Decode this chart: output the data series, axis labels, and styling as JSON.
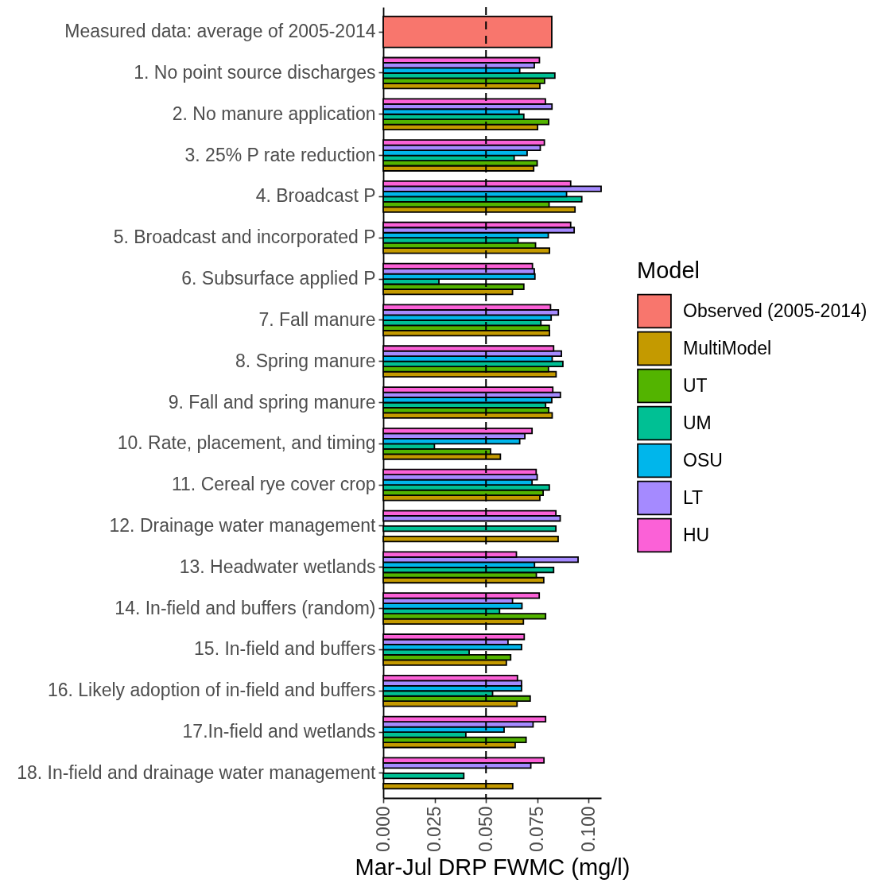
{
  "chart_data": {
    "type": "bar",
    "orientation": "horizontal",
    "categories": [
      "Measured data: average of 2005-2014",
      "1. No point source discharges",
      "2. No manure application",
      "3. 25% P rate reduction",
      "4. Broadcast P",
      "5. Broadcast and incorporated P",
      "6. Subsurface applied P",
      "7. Fall manure",
      "8. Spring manure",
      "9. Fall and spring manure",
      "10. Rate, placement, and timing",
      "11. Cereal rye cover crop",
      "12. Drainage water management",
      "13. Headwater wetlands",
      "14. In-field and buffers (random)",
      "15. In-field and buffers",
      "16. Likely adoption of in-field and buffers",
      "17.In-field and wetlands",
      "18. In-field and drainage water management"
    ],
    "series": [
      {
        "name": "Observed (2005-2014)",
        "color": "#f8766d",
        "values": [
          0.082,
          null,
          null,
          null,
          null,
          null,
          null,
          null,
          null,
          null,
          null,
          null,
          null,
          null,
          null,
          null,
          null,
          null,
          null
        ]
      },
      {
        "name": "MultiModel",
        "color": "#c49a00",
        "values": [
          null,
          0.0762,
          0.0751,
          0.0732,
          0.0933,
          0.0809,
          0.0629,
          0.0809,
          0.0841,
          0.0822,
          0.057,
          0.0762,
          0.0851,
          0.0781,
          0.0682,
          0.0599,
          0.0651,
          0.0642,
          0.063
        ]
      },
      {
        "name": "UT",
        "color": "#53b400",
        "values": [
          null,
          0.0785,
          0.0805,
          0.0749,
          0.0807,
          0.0741,
          0.0684,
          0.0808,
          0.0804,
          0.0805,
          0.0522,
          0.0778,
          null,
          0.0745,
          0.079,
          0.062,
          0.0715,
          0.0695,
          null
        ]
      },
      {
        "name": "UM",
        "color": "#00c094",
        "values": [
          null,
          0.0835,
          0.0684,
          0.0637,
          0.0966,
          0.0656,
          0.0271,
          0.0767,
          0.0874,
          0.079,
          0.0249,
          0.0808,
          0.084,
          0.0829,
          0.0566,
          0.0418,
          0.0532,
          0.0402,
          0.0392
        ]
      },
      {
        "name": "OSU",
        "color": "#00b6eb",
        "values": [
          null,
          0.0664,
          0.0661,
          0.07,
          0.0892,
          0.0803,
          0.0738,
          0.0817,
          0.0822,
          0.082,
          0.0664,
          0.0724,
          null,
          0.0736,
          0.0675,
          0.0673,
          0.0673,
          0.0588,
          null
        ]
      },
      {
        "name": "LT",
        "color": "#a58aff",
        "values": [
          null,
          0.0735,
          0.0821,
          0.0764,
          0.106,
          0.0929,
          0.0735,
          0.0852,
          0.0867,
          0.0862,
          0.0689,
          0.0749,
          0.0861,
          0.0948,
          0.0629,
          0.0607,
          0.0673,
          0.0729,
          0.0718
        ]
      },
      {
        "name": "HU",
        "color": "#fb61d7",
        "values": [
          null,
          0.076,
          0.0789,
          0.0784,
          0.0912,
          0.0912,
          0.0726,
          0.0814,
          0.0829,
          0.0825,
          0.0724,
          0.0744,
          0.084,
          0.0648,
          0.0759,
          0.0686,
          0.0653,
          0.079,
          0.0782
        ]
      }
    ],
    "xlabel": "Mar-Jul DRP FWMC (mg/l)",
    "legend_title": "Model",
    "legend": "right",
    "xlim": [
      0,
      0.106
    ],
    "xticks": [
      {
        "value": 0,
        "label": "0.000"
      },
      {
        "value": 0.025,
        "label": "0.025"
      },
      {
        "value": 0.05,
        "label": "0.050"
      },
      {
        "value": 0.075,
        "label": "0.075"
      },
      {
        "value": 0.1,
        "label": "0.100"
      }
    ],
    "ref_lines": [
      {
        "axis": "x",
        "value": 0.05,
        "color": "#000000",
        "line_style": "dashed"
      }
    ]
  }
}
